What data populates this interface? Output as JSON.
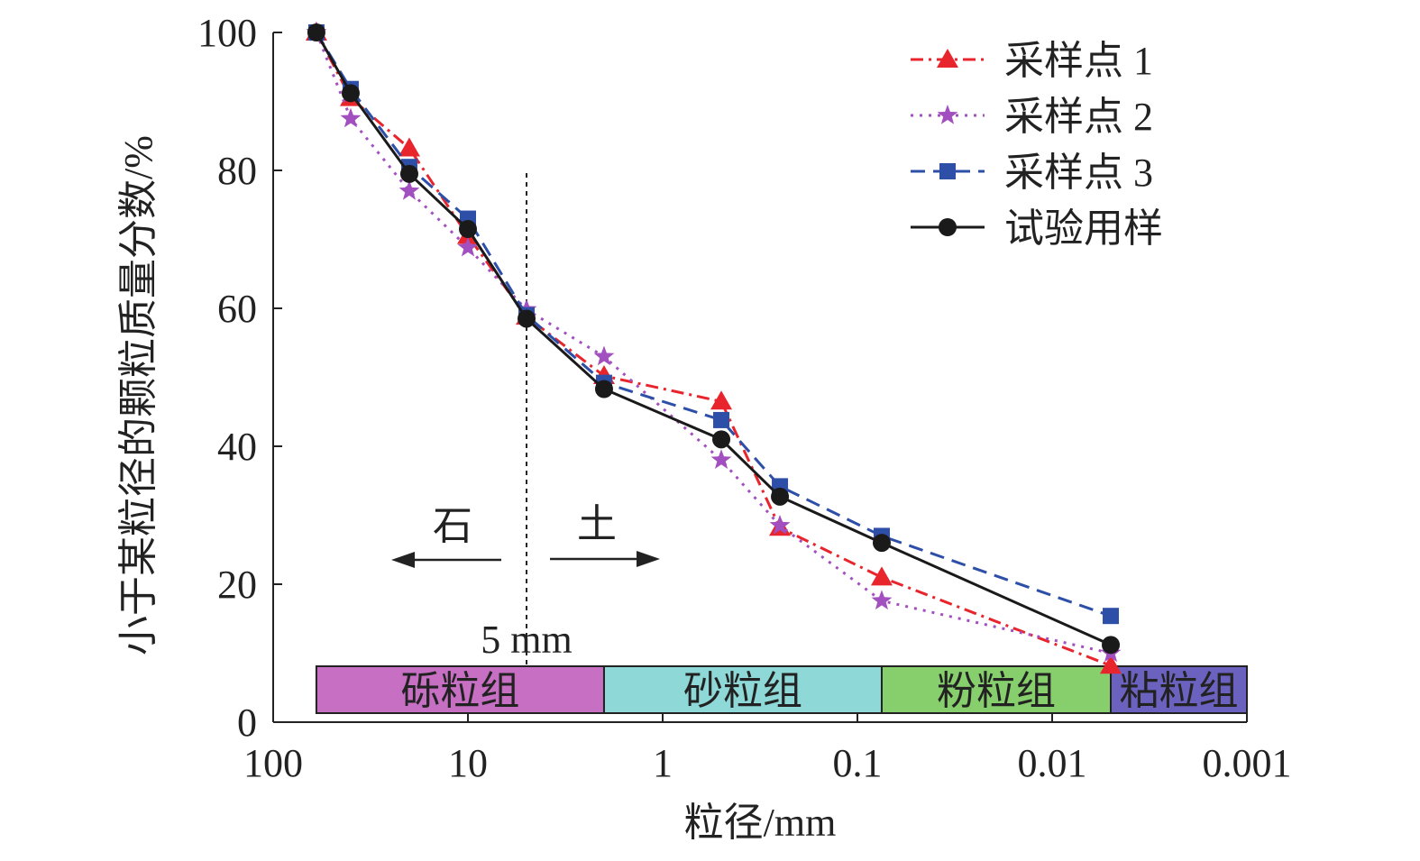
{
  "chart_data": {
    "type": "line",
    "xlabel": "粒径/mm",
    "ylabel": "小于某粒径的颗粒质量分数/%",
    "x_scale": "log",
    "x_reversed": true,
    "xlim": [
      100,
      0.001
    ],
    "ylim": [
      0,
      100
    ],
    "x_ticks": [
      "100",
      "10",
      "1",
      "0.1",
      "0.01",
      "0.001"
    ],
    "y_ticks": [
      "0",
      "20",
      "40",
      "60",
      "80",
      "100"
    ],
    "x_tick_values": [
      100,
      10,
      1,
      0.1,
      0.01,
      0.001
    ],
    "y_tick_values": [
      0,
      20,
      40,
      60,
      80,
      100
    ],
    "grid": false,
    "legend_position": "top-right",
    "x": [
      60,
      40,
      20,
      10,
      5,
      2,
      0.5,
      0.25,
      0.075,
      0.005
    ],
    "series": [
      {
        "name": "采样点 1",
        "color": "#e8242c",
        "marker": "triangle",
        "dash": "dashdot",
        "values": [
          100,
          90.5,
          83.2,
          70.5,
          58.8,
          50.2,
          46.5,
          28.2,
          21.0,
          8.2
        ]
      },
      {
        "name": "采样点 2",
        "color": "#a24fbf",
        "marker": "star",
        "dash": "dot",
        "values": [
          100,
          87.5,
          77.0,
          68.8,
          59.8,
          53.0,
          38.0,
          28.5,
          17.6,
          10.0
        ]
      },
      {
        "name": "采样点 3",
        "color": "#2e4fa8",
        "marker": "square",
        "dash": "dash",
        "values": [
          100,
          91.8,
          80.5,
          73.0,
          59.0,
          49.2,
          43.8,
          34.2,
          27.0,
          15.4
        ]
      },
      {
        "name": "试验用样",
        "color": "#1a1a1a",
        "marker": "circle",
        "dash": "solid",
        "values": [
          100,
          91.2,
          79.5,
          71.5,
          58.5,
          48.3,
          41.0,
          32.7,
          26.0,
          11.2
        ]
      }
    ],
    "bands": [
      {
        "label": "砾粒组",
        "from": 60,
        "to": 2,
        "color": "#c66fc3"
      },
      {
        "label": "砂粒组",
        "from": 2,
        "to": 0.075,
        "color": "#8fd8d8"
      },
      {
        "label": "粉粒组",
        "from": 0.075,
        "to": 0.005,
        "color": "#86cf6c"
      },
      {
        "label": "粘粒组",
        "from": 0.005,
        "to": 0.001,
        "color": "#6b62bf"
      }
    ],
    "divider": {
      "x": 5,
      "label": "5 mm"
    },
    "annotations": {
      "left": "石",
      "right": "土"
    }
  }
}
